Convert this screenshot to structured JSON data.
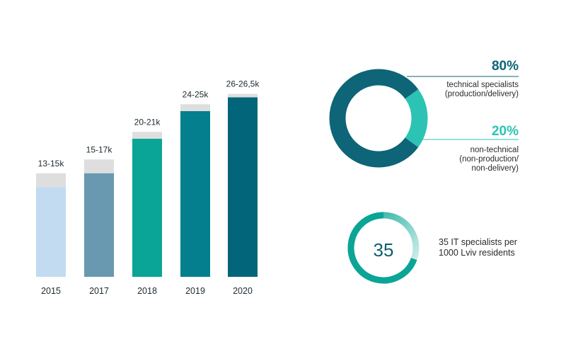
{
  "chart_data": [
    {
      "type": "bar",
      "categories": [
        "2015",
        "2017",
        "2018",
        "2019",
        "2020"
      ],
      "series": [
        {
          "values": [
            13,
            15,
            20,
            24,
            26
          ]
        },
        {
          "values": [
            15,
            17,
            21,
            25,
            26.5
          ]
        }
      ],
      "data_labels": [
        "13-15k",
        "15-17k",
        "20-21k",
        "24-25k",
        "26-26,5k"
      ],
      "colors": [
        "#c2dbf1",
        "#6899b1",
        "#0aa596",
        "#047f8e",
        "#03657a"
      ],
      "range_color": "#dedede"
    },
    {
      "type": "pie",
      "labels": [
        "technical specialists (production/delivery)",
        "non-technical (non-production/ non-delivery)"
      ],
      "values": [
        80,
        20
      ],
      "colors": [
        "#0d6577",
        "#2cc3b4"
      ]
    }
  ],
  "donut": {
    "tech_pct": "80%",
    "tech_line1": "technical specialists",
    "tech_line2": "(production/delivery)",
    "nontech_pct": "20%",
    "nontech_line1": "non-technical",
    "nontech_line2": "(non-production/",
    "nontech_line3": "non-delivery)",
    "tech_color": "#0d6577",
    "nontech_color": "#2cc3b4"
  },
  "ring": {
    "number": "35",
    "line1": "35 IT specialists per",
    "line2": "1000 Lviv residents",
    "color": "#0aa596"
  }
}
